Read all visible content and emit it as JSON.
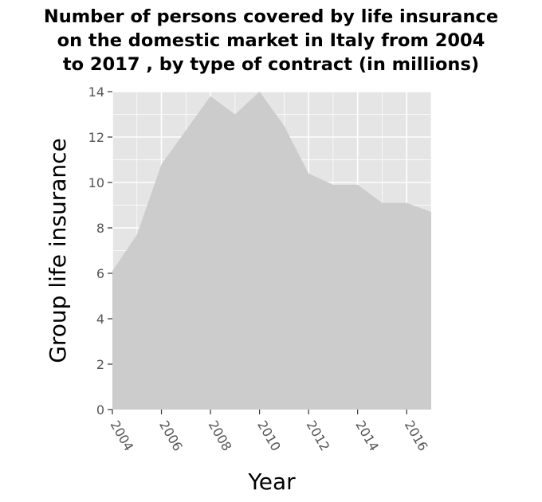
{
  "chart_data": {
    "type": "area",
    "title_lines": [
      "Number of persons covered by life insurance",
      "on the domestic market in Italy from 2004",
      "to 2017 , by type of contract (in millions)"
    ],
    "xlabel": "Year",
    "ylabel": "Group life insurance",
    "x": [
      2004,
      2005,
      2006,
      2007,
      2008,
      2009,
      2010,
      2011,
      2012,
      2013,
      2014,
      2015,
      2016,
      2017
    ],
    "series": [
      {
        "values": [
          6.1,
          7.7,
          10.8,
          12.3,
          13.8,
          13.0,
          14.0,
          12.5,
          10.4,
          9.9,
          9.9,
          9.1,
          9.1,
          8.7
        ]
      }
    ],
    "xlim": [
      2004,
      2017
    ],
    "ylim": [
      0,
      14
    ],
    "x_ticks": [
      "2004",
      "2006",
      "2008",
      "2010",
      "2012",
      "2014",
      "2016"
    ],
    "y_ticks": [
      "0",
      "2",
      "4",
      "6",
      "8",
      "10",
      "12",
      "14"
    ],
    "grid": true,
    "colors": {
      "panel": "#e5e5e5",
      "grid": "#ffffff",
      "area": "#cccccc"
    }
  }
}
